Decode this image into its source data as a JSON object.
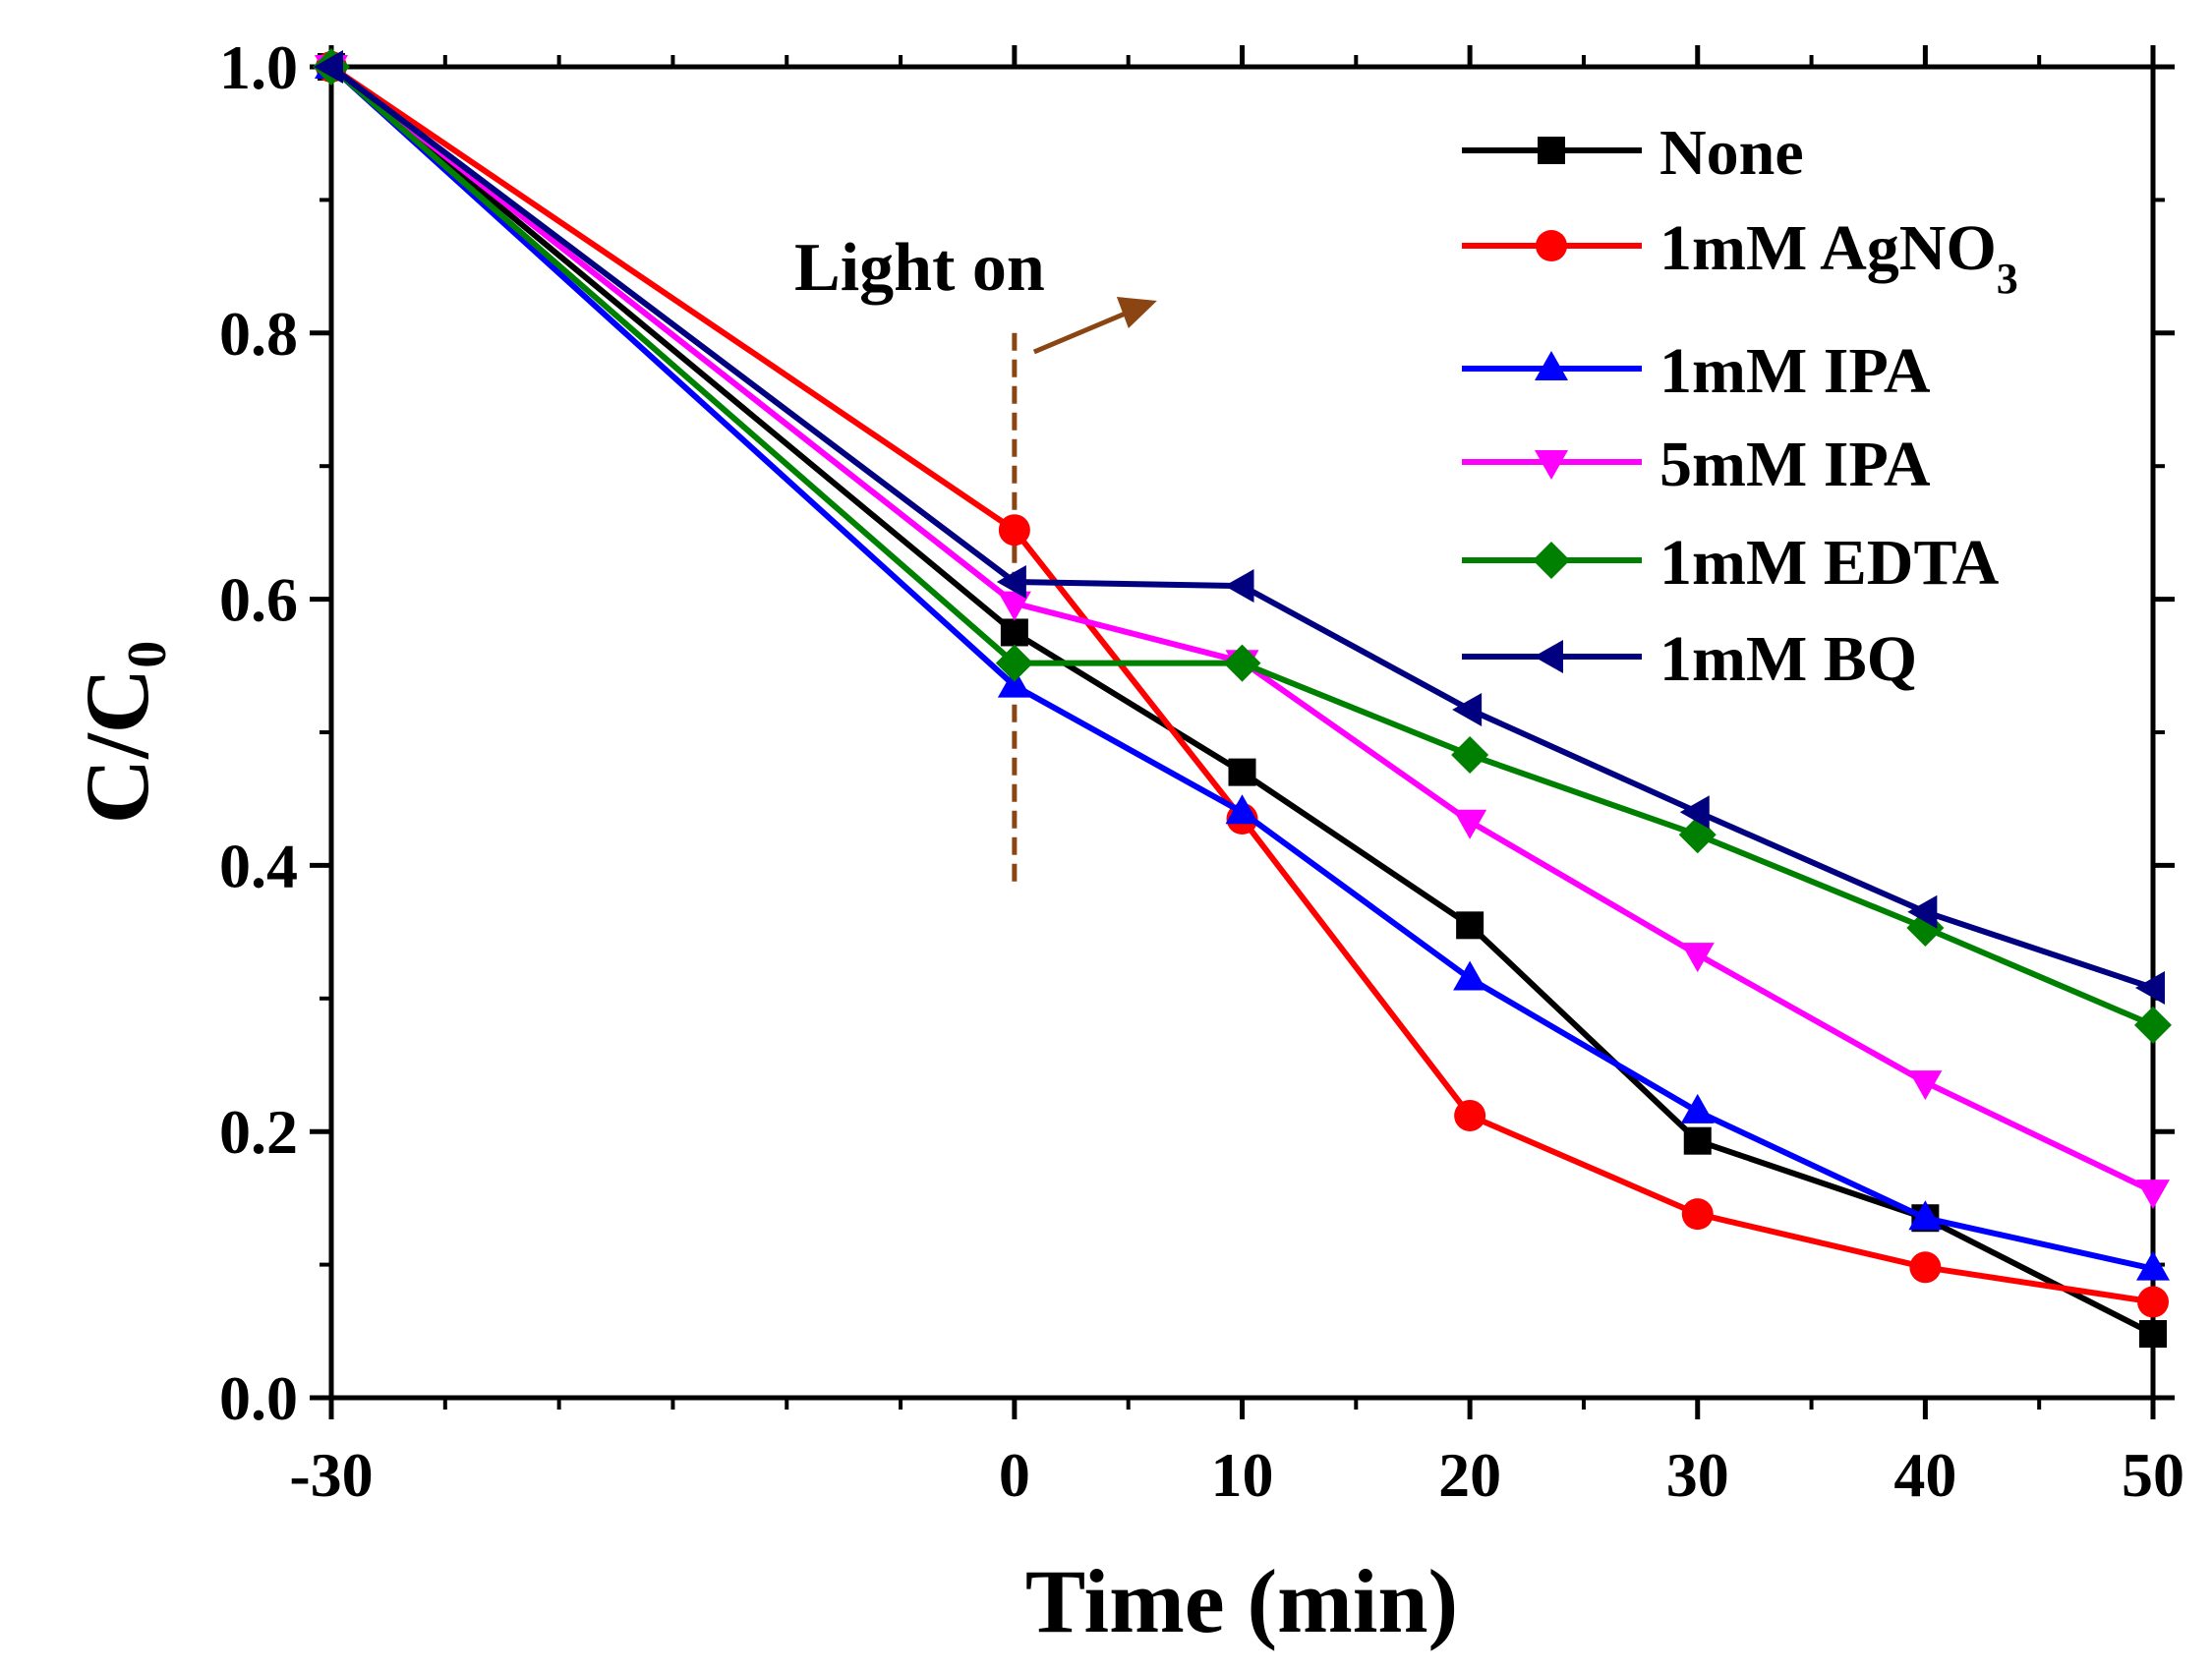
{
  "chart_data": {
    "type": "line",
    "title": "",
    "xlabel": "Time (min)",
    "ylabel_main": "C/C",
    "ylabel_sub": "0",
    "xlim": [
      -30,
      50
    ],
    "ylim": [
      0.0,
      1.0
    ],
    "x_ticks": [
      -30,
      0,
      10,
      20,
      30,
      40,
      50
    ],
    "x_tick_labels": [
      "-30",
      "0",
      "10",
      "20",
      "30",
      "40",
      "50"
    ],
    "y_ticks": [
      0.0,
      0.2,
      0.4,
      0.6,
      0.8,
      1.0
    ],
    "y_tick_labels": [
      "0.0",
      "0.2",
      "0.4",
      "0.6",
      "0.8",
      "1.0"
    ],
    "x": [
      -30,
      0,
      10,
      20,
      30,
      40,
      50
    ],
    "legend_position": "top-right",
    "series": [
      {
        "name": "None",
        "label_main": "None",
        "label_sub": "",
        "color": "#000000",
        "marker": "square",
        "values": [
          1.0,
          0.575,
          0.47,
          0.355,
          0.193,
          0.135,
          0.048
        ]
      },
      {
        "name": "1mM AgNO3",
        "label_main": "1mM AgNO",
        "label_sub": "3",
        "color": "#ff0000",
        "marker": "circle",
        "values": [
          1.0,
          0.652,
          0.435,
          0.212,
          0.138,
          0.098,
          0.072
        ]
      },
      {
        "name": "1mM IPA",
        "label_main": "1mM IPA",
        "label_sub": "",
        "color": "#0000ff",
        "marker": "triangle-up",
        "values": [
          1.0,
          0.535,
          0.44,
          0.315,
          0.215,
          0.135,
          0.097
        ]
      },
      {
        "name": "5mM IPA",
        "label_main": "5mM IPA",
        "label_sub": "",
        "color": "#ff00ff",
        "marker": "triangle-down",
        "values": [
          1.0,
          0.597,
          0.553,
          0.433,
          0.333,
          0.237,
          0.155
        ]
      },
      {
        "name": "1mM EDTA",
        "label_main": "1mM EDTA",
        "label_sub": "",
        "color": "#008000",
        "marker": "diamond",
        "values": [
          1.0,
          0.552,
          0.552,
          0.483,
          0.423,
          0.353,
          0.28
        ]
      },
      {
        "name": "1mM BQ",
        "label_main": "1mM BQ",
        "label_sub": "",
        "color": "#000080",
        "marker": "triangle-left",
        "values": [
          1.0,
          0.613,
          0.61,
          0.517,
          0.44,
          0.365,
          0.308
        ]
      }
    ],
    "annotations": [
      {
        "text": "Light on",
        "x": 0,
        "y_from": 0.385,
        "y_to": 0.8,
        "line_style": "dashed",
        "color": "#8b4513"
      }
    ]
  }
}
